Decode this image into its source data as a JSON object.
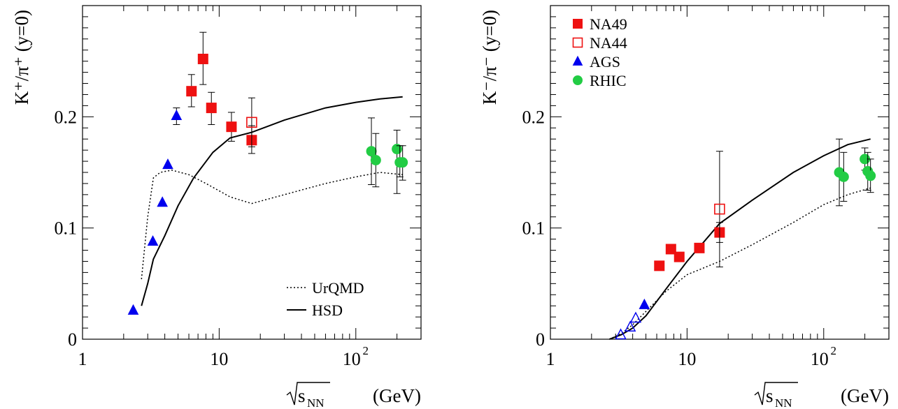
{
  "chart_data": [
    {
      "type": "scatter",
      "ylabel": "K⁺/π⁺ (y=0)",
      "xlabel": "√s_NN (GeV)",
      "xscale": "log",
      "xlim": [
        1,
        300
      ],
      "ylim": [
        0,
        0.3
      ],
      "xticks": [
        "1",
        "10",
        "10²"
      ],
      "yticks": [
        "0",
        "0.1",
        "0.2"
      ],
      "legend_position": "bottom-right",
      "legend": [
        "UrQMD",
        "HSD"
      ],
      "series": [
        {
          "label": "AGS",
          "marker": "triangle",
          "color": "#0000ee",
          "filled": true,
          "points": [
            [
              2.35,
              0.026,
              0,
              0
            ],
            [
              3.27,
              0.088,
              0,
              0
            ],
            [
              3.84,
              0.123,
              0,
              0
            ],
            [
              4.21,
              0.157,
              0,
              0
            ],
            [
              4.87,
              0.201,
              0.208,
              0.193
            ]
          ]
        },
        {
          "label": "NA49",
          "marker": "square",
          "color": "#ee1111",
          "filled": true,
          "points": [
            [
              6.27,
              0.223,
              0.238,
              0.209
            ],
            [
              7.62,
              0.252,
              0.276,
              0.229
            ],
            [
              8.77,
              0.208,
              0.222,
              0.193
            ],
            [
              12.3,
              0.191,
              0.204,
              0.178
            ],
            [
              17.3,
              0.179,
              0.192,
              0.167
            ]
          ]
        },
        {
          "label": "NA44",
          "marker": "square",
          "color": "#ee1111",
          "filled": false,
          "points": [
            [
              17.3,
              0.195,
              0.217,
              0.173
            ]
          ]
        },
        {
          "label": "RHIC",
          "marker": "circle",
          "color": "#22cc44",
          "filled": true,
          "points": [
            [
              130,
              0.169,
              0.199,
              0.139
            ],
            [
              140,
              0.161,
              0.185,
              0.137
            ],
            [
              200,
              0.171,
              0.188,
              0.131
            ],
            [
              210,
              0.159,
              0.174,
              0.146
            ],
            [
              220,
              0.159,
              0.174,
              0.143
            ]
          ]
        }
      ],
      "curves": [
        {
          "label": "UrQMD",
          "style": "dotted",
          "points": [
            [
              2.7,
              0.054
            ],
            [
              3.0,
              0.11
            ],
            [
              3.3,
              0.145
            ],
            [
              3.7,
              0.15
            ],
            [
              4.5,
              0.152
            ],
            [
              6.0,
              0.148
            ],
            [
              8.0,
              0.14
            ],
            [
              12.0,
              0.128
            ],
            [
              17.3,
              0.122
            ],
            [
              30,
              0.13
            ],
            [
              60,
              0.14
            ],
            [
              100,
              0.146
            ],
            [
              150,
              0.15
            ],
            [
              220,
              0.148
            ]
          ]
        },
        {
          "label": "HSD",
          "style": "solid",
          "points": [
            [
              2.7,
              0.03
            ],
            [
              3.0,
              0.05
            ],
            [
              3.3,
              0.072
            ],
            [
              4.0,
              0.093
            ],
            [
              5.0,
              0.12
            ],
            [
              6.5,
              0.145
            ],
            [
              9.0,
              0.168
            ],
            [
              12.0,
              0.181
            ],
            [
              17.3,
              0.186
            ],
            [
              30,
              0.197
            ],
            [
              60,
              0.208
            ],
            [
              100,
              0.213
            ],
            [
              150,
              0.216
            ],
            [
              220,
              0.218
            ]
          ]
        }
      ]
    },
    {
      "type": "scatter",
      "ylabel": "K⁻/π⁻ (y=0)",
      "xlabel": "√s_NN (GeV)",
      "xscale": "log",
      "xlim": [
        1,
        300
      ],
      "ylim": [
        0,
        0.3
      ],
      "xticks": [
        "1",
        "10",
        "10²"
      ],
      "yticks": [
        "0",
        "0.1",
        "0.2"
      ],
      "legend_position": "top-left",
      "legend": [
        "NA49",
        "NA44",
        "AGS",
        "RHIC"
      ],
      "series": [
        {
          "label": "NA49",
          "marker": "square",
          "color": "#ee1111",
          "filled": true,
          "points": [
            [
              6.27,
              0.066,
              0,
              0
            ],
            [
              7.62,
              0.081,
              0,
              0
            ],
            [
              8.77,
              0.074,
              0,
              0
            ],
            [
              12.3,
              0.082,
              0,
              0
            ],
            [
              17.3,
              0.096,
              0.105,
              0.087
            ]
          ]
        },
        {
          "label": "NA44",
          "marker": "square",
          "color": "#ee1111",
          "filled": false,
          "points": [
            [
              17.3,
              0.117,
              0.169,
              0.065
            ]
          ]
        },
        {
          "label": "AGS",
          "marker": "triangle",
          "color": "#0000ee",
          "filled": true,
          "points": [
            [
              4.87,
              0.031,
              0,
              0
            ]
          ]
        },
        {
          "label": "AGS (open)",
          "marker": "triangle",
          "color": "#0000ee",
          "filled": false,
          "points": [
            [
              3.27,
              0.004,
              0,
              0
            ],
            [
              3.84,
              0.011,
              0,
              0
            ],
            [
              4.21,
              0.019,
              0,
              0
            ]
          ]
        },
        {
          "label": "RHIC",
          "marker": "circle",
          "color": "#22cc44",
          "filled": true,
          "points": [
            [
              130,
              0.15,
              0.18,
              0.12
            ],
            [
              140,
              0.146,
              0.168,
              0.124
            ],
            [
              200,
              0.162,
              0.172,
              0.152
            ],
            [
              210,
              0.151,
              0.168,
              0.134
            ],
            [
              220,
              0.147,
              0.162,
              0.132
            ]
          ]
        }
      ],
      "curves": [
        {
          "label": "UrQMD",
          "style": "dotted",
          "points": [
            [
              2.7,
              0.0
            ],
            [
              3.3,
              0.005
            ],
            [
              4.0,
              0.013
            ],
            [
              5.0,
              0.025
            ],
            [
              7.0,
              0.043
            ],
            [
              10,
              0.058
            ],
            [
              17.3,
              0.07
            ],
            [
              30,
              0.085
            ],
            [
              60,
              0.105
            ],
            [
              100,
              0.121
            ],
            [
              150,
              0.13
            ],
            [
              220,
              0.136
            ]
          ]
        },
        {
          "label": "HSD",
          "style": "solid",
          "points": [
            [
              2.7,
              0.0
            ],
            [
              3.3,
              0.004
            ],
            [
              4.0,
              0.01
            ],
            [
              5.0,
              0.021
            ],
            [
              7.0,
              0.045
            ],
            [
              10,
              0.07
            ],
            [
              17.3,
              0.104
            ],
            [
              30,
              0.125
            ],
            [
              60,
              0.15
            ],
            [
              100,
              0.165
            ],
            [
              150,
              0.175
            ],
            [
              220,
              0.18
            ]
          ]
        }
      ]
    }
  ]
}
